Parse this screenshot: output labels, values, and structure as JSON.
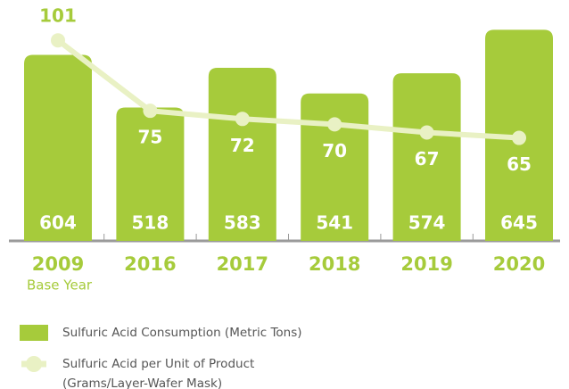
{
  "chart_data": {
    "type": "bar",
    "categories": [
      "2009",
      "2016",
      "2017",
      "2018",
      "2019",
      "2020"
    ],
    "annotations": [
      "Base Year"
    ],
    "series": [
      {
        "name": "Sulfuric Acid Consumption (Metric Tons)",
        "color": "#a6cb3b",
        "values": [
          604,
          518,
          583,
          541,
          574,
          645
        ]
      },
      {
        "name": "Sulfuric Acid per Unit of Product (Grams/Layer-Wafer Mask)",
        "color": "#e9f1c4",
        "type": "line",
        "axis": "y2",
        "values": [
          101,
          75,
          72,
          70,
          67,
          65
        ]
      }
    ],
    "ylim": [
      300,
      650
    ],
    "y2lim": [
      27,
      106
    ]
  }
}
